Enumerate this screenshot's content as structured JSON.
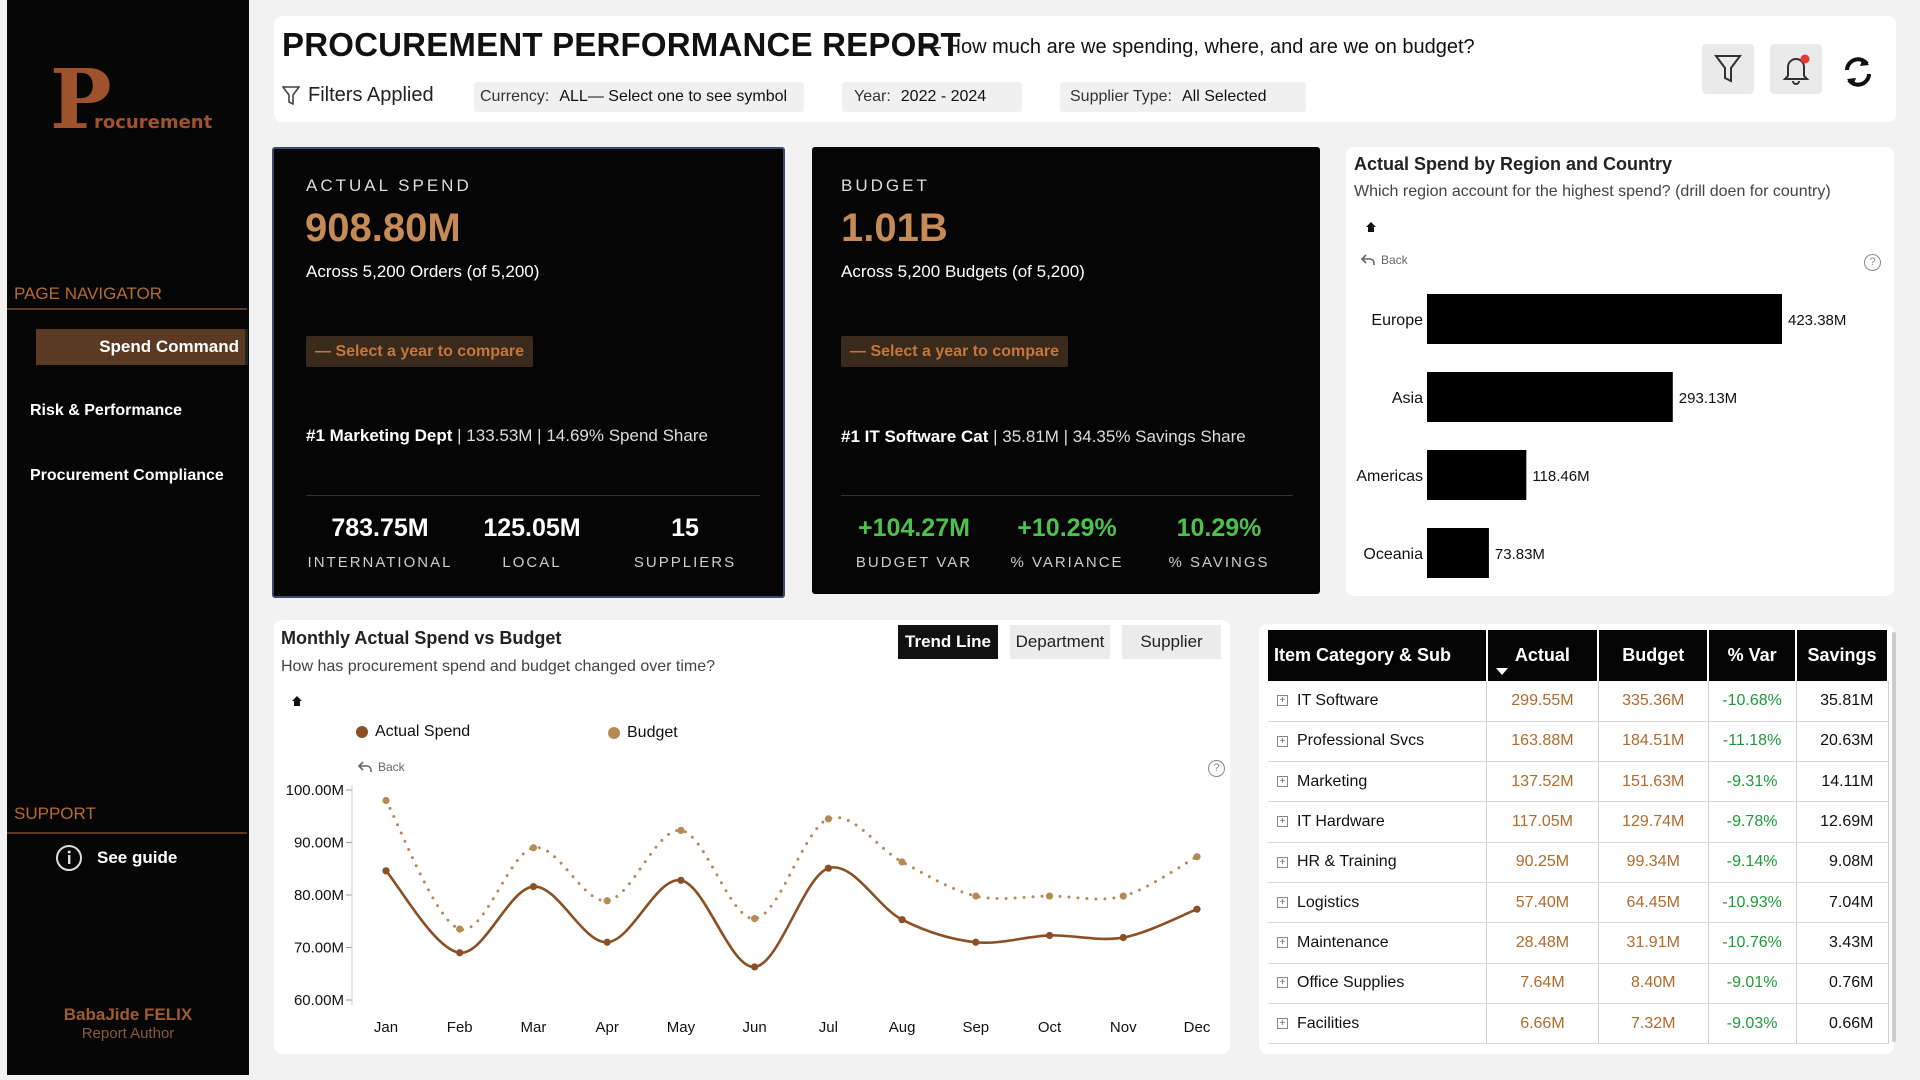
{
  "sidebar": {
    "logo_letter": "P",
    "logo_text": "rocurement",
    "nav_section": "PAGE NAVIGATOR",
    "nav_items": [
      {
        "label": "Spend Command",
        "active": true
      },
      {
        "label": "Risk & Performance",
        "active": false
      },
      {
        "label": "Procurement Compliance",
        "active": false
      }
    ],
    "support_section": "SUPPORT",
    "guide_label": "See guide",
    "author_name": "BabaJide FELIX",
    "author_role": "Report Author"
  },
  "header": {
    "title": "PROCUREMENT PERFORMANCE REPORT",
    "subtitle": "— How much are we spending, where, and are we on budget?",
    "filters_label": "Filters Applied",
    "currency_label": "Currency:",
    "currency_value": "ALL— Select one to see symbol",
    "year_label": "Year:",
    "year_value": "2022 - 2024",
    "supplier_label": "Supplier Type:",
    "supplier_value": "All Selected",
    "icons": [
      "filter-icon",
      "notification-bell-icon",
      "refresh-icon"
    ]
  },
  "actual_card": {
    "label": "ACTUAL SPEND",
    "value": "908.80M",
    "sub": "Across 5,200 Orders (of 5,200)",
    "compare": "— Select a year to compare",
    "rank_bold": "#1 Marketing Dept",
    "rank_rest": " | 133.53M | 14.69% Spend Share",
    "stats": [
      {
        "value": "783.75M",
        "label": "INTERNATIONAL"
      },
      {
        "value": "125.05M",
        "label": "LOCAL"
      },
      {
        "value": "15",
        "label": "SUPPLIERS"
      }
    ]
  },
  "budget_card": {
    "label": "BUDGET",
    "value": "1.01B",
    "sub": "Across 5,200 Budgets (of 5,200)",
    "compare": "— Select a year to compare",
    "rank_bold": "#1 IT Software Cat",
    "rank_rest": " | 35.81M | 34.35% Savings Share",
    "stats": [
      {
        "value": "+104.27M",
        "label": "BUDGET VAR"
      },
      {
        "value": "+10.29%",
        "label": "% VARIANCE"
      },
      {
        "value": "10.29%",
        "label": "% SAVINGS"
      }
    ]
  },
  "region_panel": {
    "title": "Actual Spend by Region and Country",
    "subtitle": "Which region account for the highest spend? (drill doen for country)",
    "back_label": "Back",
    "help": "?"
  },
  "trend_panel": {
    "title": "Monthly Actual Spend vs Budget",
    "subtitle": "How has procurement spend and budget changed over time?",
    "tabs": [
      {
        "label": "Trend Line",
        "active": true
      },
      {
        "label": "Department",
        "active": false
      },
      {
        "label": "Supplier",
        "active": false
      }
    ],
    "back_label": "Back",
    "help": "?"
  },
  "chart_data": [
    {
      "type": "bar",
      "orientation": "horizontal",
      "title": "Actual Spend by Region and Country",
      "categories": [
        "Europe",
        "Asia",
        "Americas",
        "Oceania"
      ],
      "values": [
        423.38,
        293.13,
        118.46,
        73.83
      ],
      "value_labels": [
        "423.38M",
        "293.13M",
        "118.46M",
        "73.83M"
      ],
      "unit": "M",
      "bar_color": "#000000"
    },
    {
      "type": "line",
      "title": "Monthly Actual Spend vs Budget",
      "categories": [
        "Jan",
        "Feb",
        "Mar",
        "Apr",
        "May",
        "Jun",
        "Jul",
        "Aug",
        "Sep",
        "Oct",
        "Nov",
        "Dec"
      ],
      "series": [
        {
          "name": "Actual Spend",
          "color": "#8a4f24",
          "style": "solid",
          "values": [
            84.6,
            69.0,
            81.6,
            71.0,
            82.8,
            66.3,
            85.1,
            75.3,
            71.0,
            72.3,
            71.9,
            77.3
          ]
        },
        {
          "name": "Budget",
          "color": "#b68a55",
          "style": "dotted",
          "values": [
            98.0,
            73.5,
            89.0,
            78.9,
            92.3,
            75.5,
            94.5,
            86.3,
            79.8,
            79.8,
            79.8,
            87.3
          ]
        }
      ],
      "yticks": [
        "100.00M",
        "90.00M",
        "80.00M",
        "70.00M",
        "60.00M"
      ],
      "ylim": [
        60,
        100
      ],
      "legend": "top-left",
      "grid": false
    }
  ],
  "category_table": {
    "columns": [
      "Item Category & Sub",
      "Actual",
      "Budget",
      "% Var",
      "Savings"
    ],
    "rows": [
      {
        "name": "IT Software",
        "actual": "299.55M",
        "budget": "335.36M",
        "var": "-10.68%",
        "savings": "35.81M"
      },
      {
        "name": "Professional Svcs",
        "actual": "163.88M",
        "budget": "184.51M",
        "var": "-11.18%",
        "savings": "20.63M"
      },
      {
        "name": "Marketing",
        "actual": "137.52M",
        "budget": "151.63M",
        "var": "-9.31%",
        "savings": "14.11M"
      },
      {
        "name": "IT Hardware",
        "actual": "117.05M",
        "budget": "129.74M",
        "var": "-9.78%",
        "savings": "12.69M"
      },
      {
        "name": "HR & Training",
        "actual": "90.25M",
        "budget": "99.34M",
        "var": "-9.14%",
        "savings": "9.08M"
      },
      {
        "name": "Logistics",
        "actual": "57.40M",
        "budget": "64.45M",
        "var": "-10.93%",
        "savings": "7.04M"
      },
      {
        "name": "Maintenance",
        "actual": "28.48M",
        "budget": "31.91M",
        "var": "-10.76%",
        "savings": "3.43M"
      },
      {
        "name": "Office Supplies",
        "actual": "7.64M",
        "budget": "8.40M",
        "var": "-9.01%",
        "savings": "0.76M"
      },
      {
        "name": "Facilities",
        "actual": "6.66M",
        "budget": "7.32M",
        "var": "-9.03%",
        "savings": "0.66M"
      }
    ]
  }
}
